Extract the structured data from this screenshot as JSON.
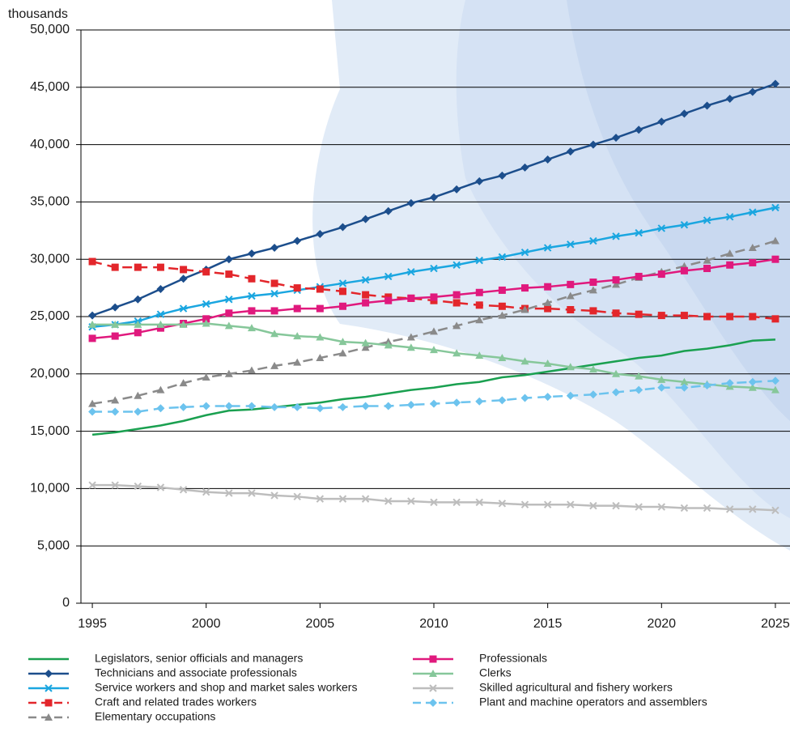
{
  "chart_data": {
    "type": "line",
    "y_label": "thousands",
    "x": [
      1995,
      1996,
      1997,
      1998,
      1999,
      2000,
      2001,
      2002,
      2003,
      2004,
      2005,
      2006,
      2007,
      2008,
      2009,
      2010,
      2011,
      2012,
      2013,
      2014,
      2015,
      2016,
      2017,
      2018,
      2019,
      2020,
      2021,
      2022,
      2023,
      2024,
      2025
    ],
    "xlim": [
      1994.5,
      2025.5
    ],
    "xticks": [
      1995,
      2000,
      2005,
      2010,
      2015,
      2020,
      2025
    ],
    "ylim": [
      0,
      50000
    ],
    "yticks": [
      0,
      {
        "value": 5000,
        "label": "5,000"
      },
      {
        "value": 10000,
        "label": "10,000"
      },
      {
        "value": 15000,
        "label": "15,000"
      },
      {
        "value": 20000,
        "label": "20,000"
      },
      {
        "value": 25000,
        "label": "25,000"
      },
      {
        "value": 30000,
        "label": "30,000"
      },
      {
        "value": 35000,
        "label": "35,000"
      },
      {
        "value": 40000,
        "label": "40,000"
      },
      {
        "value": 45000,
        "label": "45,000"
      },
      {
        "value": 50000,
        "label": "50,000"
      }
    ],
    "grid": true,
    "series": [
      {
        "name": "Legislators, senior officials and managers",
        "color": "#1aa050",
        "marker": "none",
        "dashed": false,
        "values": [
          14700,
          14900,
          15200,
          15500,
          15900,
          16400,
          16800,
          16900,
          17100,
          17300,
          17500,
          17800,
          18000,
          18300,
          18600,
          18800,
          19100,
          19300,
          19700,
          19900,
          20200,
          20500,
          20800,
          21100,
          21400,
          21600,
          22000,
          22200,
          22500,
          22900,
          23000
        ]
      },
      {
        "name": "Technicians and associate professionals",
        "color": "#1c4e8c",
        "marker": "diamond",
        "dashed": false,
        "values": [
          25100,
          25800,
          26500,
          27400,
          28300,
          29100,
          30000,
          30500,
          31000,
          31600,
          32200,
          32800,
          33500,
          34200,
          34900,
          35400,
          36100,
          36800,
          37300,
          38000,
          38700,
          39400,
          40000,
          40600,
          41300,
          42000,
          42700,
          43400,
          44000,
          44600,
          45300
        ]
      },
      {
        "name": "Service workers and shop and market sales workers",
        "color": "#1aa6e0",
        "marker": "asterisk",
        "dashed": false,
        "values": [
          24100,
          24300,
          24600,
          25200,
          25700,
          26100,
          26500,
          26800,
          27000,
          27300,
          27600,
          27900,
          28200,
          28500,
          28900,
          29200,
          29500,
          29900,
          30200,
          30600,
          31000,
          31300,
          31600,
          32000,
          32300,
          32700,
          33000,
          33400,
          33700,
          34100,
          34500
        ]
      },
      {
        "name": "Craft and related trades workers",
        "color": "#e3262b",
        "marker": "square",
        "dashed": true,
        "values": [
          29800,
          29300,
          29300,
          29300,
          29100,
          28900,
          28700,
          28300,
          27900,
          27500,
          27400,
          27200,
          26900,
          26700,
          26600,
          26400,
          26200,
          26000,
          25900,
          25700,
          25700,
          25600,
          25500,
          25300,
          25200,
          25100,
          25100,
          25000,
          25000,
          25000,
          24800
        ]
      },
      {
        "name": "Elementary occupations",
        "color": "#8a8a8a",
        "marker": "triangle",
        "dashed": true,
        "values": [
          17400,
          17700,
          18100,
          18600,
          19200,
          19700,
          20000,
          20300,
          20700,
          21000,
          21400,
          21800,
          22300,
          22800,
          23200,
          23700,
          24200,
          24700,
          25100,
          25600,
          26200,
          26800,
          27300,
          27800,
          28400,
          28900,
          29400,
          29900,
          30500,
          31000,
          31600
        ]
      },
      {
        "name": "Professionals",
        "color": "#e0197d",
        "marker": "square",
        "dashed": false,
        "values": [
          23100,
          23300,
          23600,
          24000,
          24400,
          24800,
          25300,
          25500,
          25500,
          25700,
          25700,
          25900,
          26200,
          26400,
          26600,
          26700,
          26900,
          27100,
          27300,
          27500,
          27600,
          27800,
          28000,
          28200,
          28500,
          28700,
          29000,
          29200,
          29500,
          29700,
          30000
        ]
      },
      {
        "name": "Clerks",
        "color": "#86c79a",
        "marker": "triangle",
        "dashed": false,
        "values": [
          24300,
          24300,
          24300,
          24300,
          24300,
          24400,
          24200,
          24000,
          23500,
          23300,
          23200,
          22800,
          22700,
          22500,
          22300,
          22100,
          21800,
          21600,
          21400,
          21100,
          20900,
          20600,
          20400,
          20000,
          19800,
          19500,
          19300,
          19100,
          18900,
          18800,
          18600
        ]
      },
      {
        "name": "Skilled agricultural and fishery workers",
        "color": "#bdbdbd",
        "marker": "x",
        "dashed": false,
        "values": [
          10300,
          10300,
          10200,
          10100,
          9900,
          9700,
          9600,
          9600,
          9400,
          9300,
          9100,
          9100,
          9100,
          8900,
          8900,
          8800,
          8800,
          8800,
          8700,
          8600,
          8600,
          8600,
          8500,
          8500,
          8400,
          8400,
          8300,
          8300,
          8200,
          8200,
          8100
        ]
      },
      {
        "name": "Plant and machine operators and assemblers",
        "color": "#6cc3ee",
        "marker": "diamond",
        "dashed": true,
        "values": [
          16700,
          16700,
          16700,
          17000,
          17100,
          17200,
          17200,
          17200,
          17100,
          17100,
          17000,
          17100,
          17200,
          17200,
          17300,
          17400,
          17500,
          17600,
          17700,
          17900,
          18000,
          18100,
          18200,
          18400,
          18600,
          18800,
          18800,
          19000,
          19200,
          19300,
          19400
        ]
      }
    ]
  }
}
